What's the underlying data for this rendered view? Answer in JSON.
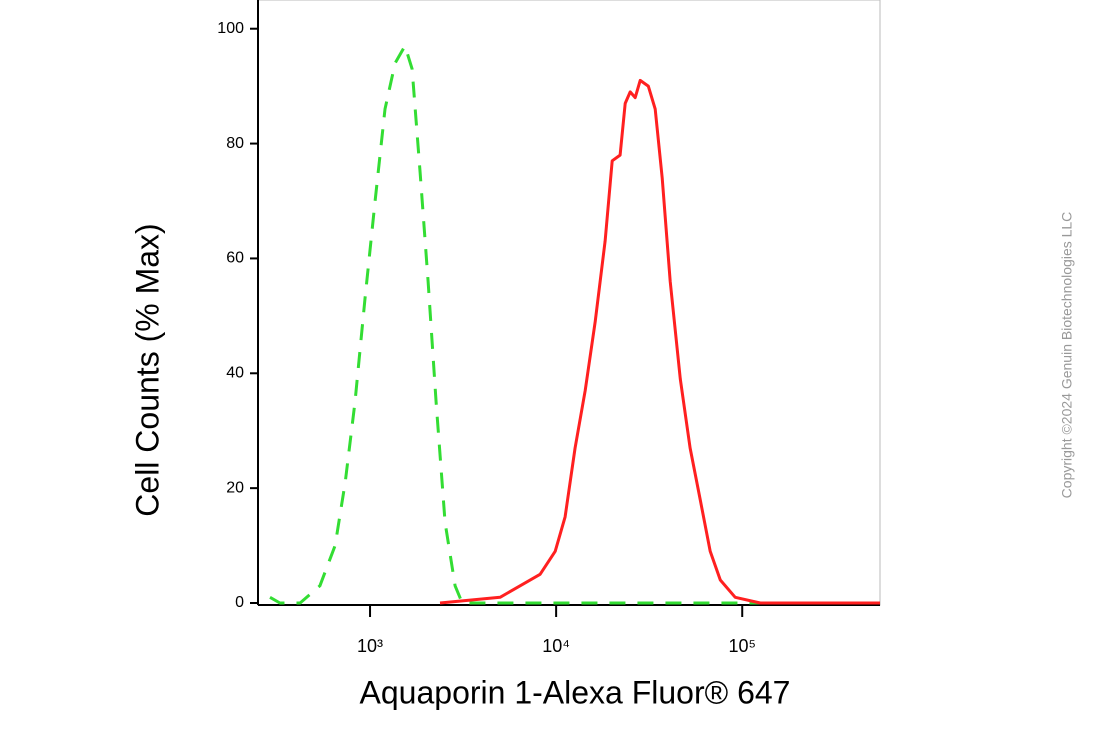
{
  "chart_data": {
    "type": "line",
    "y_label": "Cell Counts (% Max)",
    "x_label": "Aquaporin 1-Alexa Fluor® 647",
    "copyright": "Copyright ©2024 Genuin Biotechnologies LLC",
    "xscale": "log",
    "xlim": [
      250,
      550000
    ],
    "ylim": [
      0,
      105
    ],
    "xticks": [
      {
        "value": 1000,
        "label": "10³"
      },
      {
        "value": 10000,
        "label": "10⁴"
      },
      {
        "value": 100000,
        "label": "10⁵"
      }
    ],
    "yticks": [
      0,
      20,
      40,
      60,
      80,
      100
    ],
    "series": [
      {
        "color": "#33dd33",
        "dashed": true,
        "x": [
          290,
          328,
          421,
          538,
          649,
          735,
          830,
          940,
          1064,
          1204,
          1363,
          1542,
          1682,
          1858,
          2052,
          2265,
          2531,
          2864,
          3127,
          17260,
          550000
        ],
        "values": [
          1,
          0,
          0,
          3,
          10,
          21,
          35,
          53,
          70,
          86,
          94,
          97,
          93,
          75,
          56,
          35,
          14,
          3,
          0,
          0,
          0
        ]
      },
      {
        "color": "#ff2020",
        "dashed": false,
        "x": [
          2377,
          5000,
          6400,
          8200,
          9890,
          11170,
          12650,
          14320,
          16220,
          18340,
          20000,
          22080,
          23500,
          25000,
          26600,
          28300,
          31270,
          34070,
          37150,
          41040,
          46450,
          52500,
          59430,
          67300,
          76200,
          91650,
          125000,
          550000
        ],
        "values": [
          0,
          1,
          3,
          5,
          9,
          15,
          27,
          37,
          49,
          63,
          77,
          78,
          87,
          89,
          88,
          91,
          90,
          86,
          74,
          56,
          39,
          27,
          18,
          9,
          4,
          1,
          0,
          0
        ]
      }
    ]
  }
}
